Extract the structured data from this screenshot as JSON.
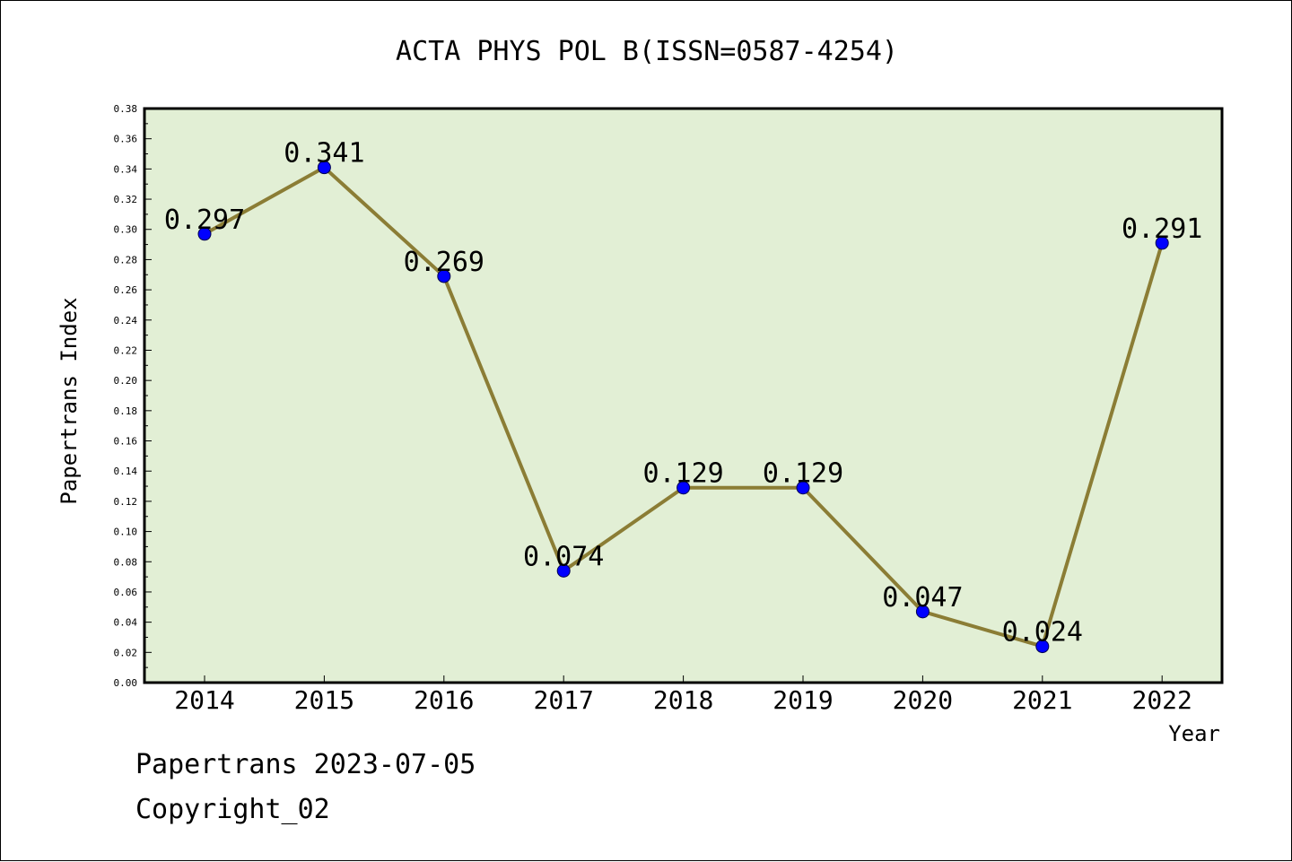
{
  "chart_data": {
    "type": "line",
    "title": "ACTA PHYS POL B(ISSN=0587-4254)",
    "xlabel": "Year",
    "ylabel": "Papertrans Index",
    "categories": [
      "2014",
      "2015",
      "2016",
      "2017",
      "2018",
      "2019",
      "2020",
      "2021",
      "2022"
    ],
    "series": [
      {
        "values": [
          0.297,
          0.341,
          0.269,
          0.074,
          0.129,
          0.129,
          0.047,
          0.024,
          0.291
        ]
      }
    ],
    "data_labels": [
      "0.297",
      "0.341",
      "0.269",
      "0.074",
      "0.129",
      "0.129",
      "0.047",
      "0.024",
      "0.291"
    ],
    "ylim": [
      0,
      0.38
    ],
    "yticks": [
      "0.00",
      "0.02",
      "0.04",
      "0.06",
      "0.08",
      "0.10",
      "0.12",
      "0.14",
      "0.16",
      "0.18",
      "0.20",
      "0.22",
      "0.24",
      "0.26",
      "0.28",
      "0.30",
      "0.32",
      "0.34",
      "0.36",
      "0.38"
    ],
    "grid": false,
    "legend": "none",
    "colors": {
      "plot_background": "#e2efd5",
      "line": "#8b7d35",
      "marker": "#0000ff"
    }
  },
  "footer": {
    "date_line": "Papertrans 2023-07-05",
    "copyright": "Copyright_02"
  }
}
